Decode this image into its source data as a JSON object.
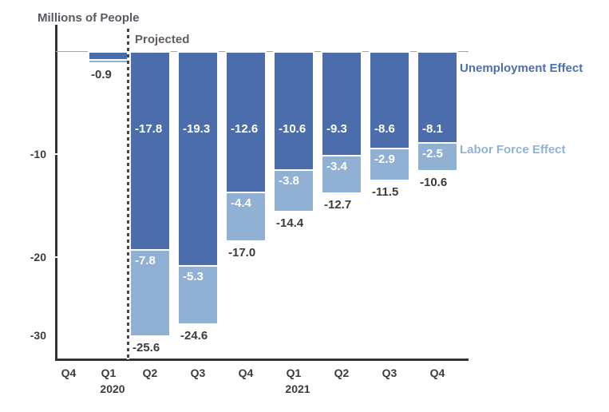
{
  "title": "Millions of People",
  "annotations": {
    "projected": "Projected"
  },
  "legend": {
    "unemployment": {
      "label": "Unemployment Effect",
      "color": "#4b70ab"
    },
    "labor_force": {
      "label": "Labor Force Effect",
      "color": "#90b2d6"
    }
  },
  "y_axis": {
    "tick_labels": [
      "-10",
      "-20",
      "-30"
    ]
  },
  "x_axis": {
    "quarter_labels": [
      "Q4",
      "Q1",
      "Q2",
      "Q3",
      "Q4",
      "Q1",
      "Q2",
      "Q3",
      "Q4"
    ],
    "year_labels": [
      "2020",
      "2021"
    ]
  },
  "colors": {
    "unemployment_bar": "#4c6dab",
    "labor_force_bar": "#90b0d4",
    "axis": "#333336",
    "zero_line": "#a3a3a3",
    "text_dark": "#3c3c40",
    "title_text": "#5c5761"
  },
  "chart_data": {
    "type": "bar",
    "stacked": true,
    "title": "Millions of People",
    "ylabel": "Millions of People",
    "ylim": [
      -30,
      0
    ],
    "grid": false,
    "legend_position": "right",
    "categories": [
      "Q4 2019",
      "Q1 2020",
      "Q2 2020",
      "Q3 2020",
      "Q4 2020",
      "Q1 2021",
      "Q2 2021",
      "Q3 2021",
      "Q4 2021"
    ],
    "projected_from": "Q2 2020",
    "series": [
      {
        "name": "Unemployment Effect",
        "color": "#4c6dab",
        "values": [
          null,
          -0.6,
          -17.8,
          -19.3,
          -12.6,
          -10.6,
          -9.3,
          -8.6,
          -8.1
        ],
        "labels": [
          null,
          null,
          "-17.8",
          "-19.3",
          "-12.6",
          "-10.6",
          "-9.3",
          "-8.6",
          "-8.1"
        ]
      },
      {
        "name": "Labor Force Effect",
        "color": "#90b0d4",
        "values": [
          null,
          -0.3,
          -7.8,
          -5.3,
          -4.4,
          -3.8,
          -3.4,
          -2.9,
          -2.5
        ],
        "labels": [
          null,
          null,
          "-7.8",
          "-5.3",
          "-4.4",
          "-3.8",
          "-3.4",
          "-2.9",
          "-2.5"
        ]
      }
    ],
    "totals": [
      null,
      -0.9,
      -25.6,
      -24.6,
      -17.0,
      -14.4,
      -12.7,
      -11.5,
      -10.6
    ],
    "total_labels": [
      null,
      "-0.9",
      "-25.6",
      "-24.6",
      "-17.0",
      "-14.4",
      "-12.7",
      "-11.5",
      "-10.6"
    ]
  }
}
